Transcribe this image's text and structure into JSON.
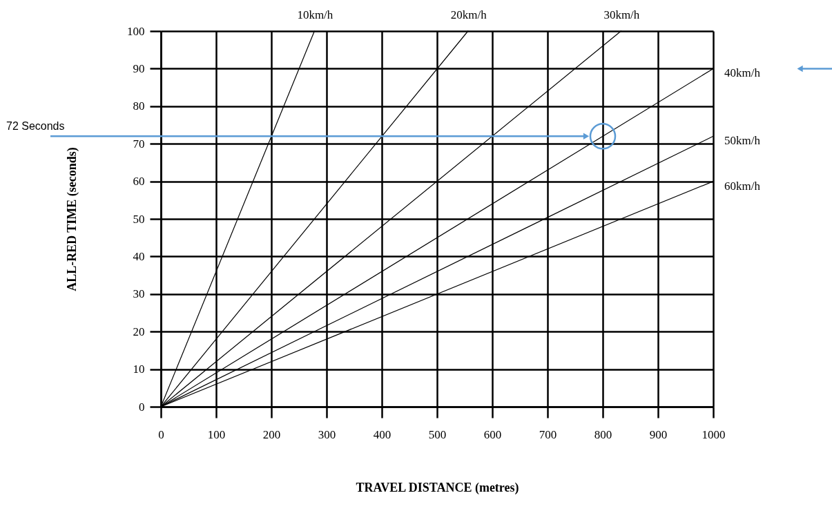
{
  "chart_data": {
    "type": "line",
    "xlabel": "TRAVEL DISTANCE (metres)",
    "ylabel": "ALL-RED TIME (seconds)",
    "xlim": [
      0,
      1000
    ],
    "ylim": [
      0,
      100
    ],
    "xticks": [
      0,
      100,
      200,
      300,
      400,
      500,
      600,
      700,
      800,
      900,
      1000
    ],
    "yticks": [
      0,
      10,
      20,
      30,
      40,
      50,
      60,
      70,
      80,
      90,
      100
    ],
    "grid": true,
    "ref_lines": [
      {
        "axis": "y",
        "value": 72,
        "label": "72 Seconds",
        "color": "#5b9bd5"
      }
    ],
    "series": [
      {
        "name": "10km/h",
        "color": "#000000",
        "x": [
          0,
          278
        ],
        "values": [
          0,
          100
        ]
      },
      {
        "name": "20km/h",
        "color": "#000000",
        "x": [
          0,
          556
        ],
        "values": [
          0,
          100
        ]
      },
      {
        "name": "30km/h",
        "color": "#000000",
        "x": [
          0,
          833
        ],
        "values": [
          0,
          100
        ]
      },
      {
        "name": "40km/h",
        "color": "#000000",
        "x": [
          0,
          1000
        ],
        "values": [
          0,
          90
        ]
      },
      {
        "name": "50km/h",
        "color": "#000000",
        "x": [
          0,
          1000
        ],
        "values": [
          0,
          72
        ]
      },
      {
        "name": "60km/h",
        "color": "#000000",
        "x": [
          0,
          1000
        ],
        "values": [
          0,
          60
        ]
      }
    ]
  }
}
